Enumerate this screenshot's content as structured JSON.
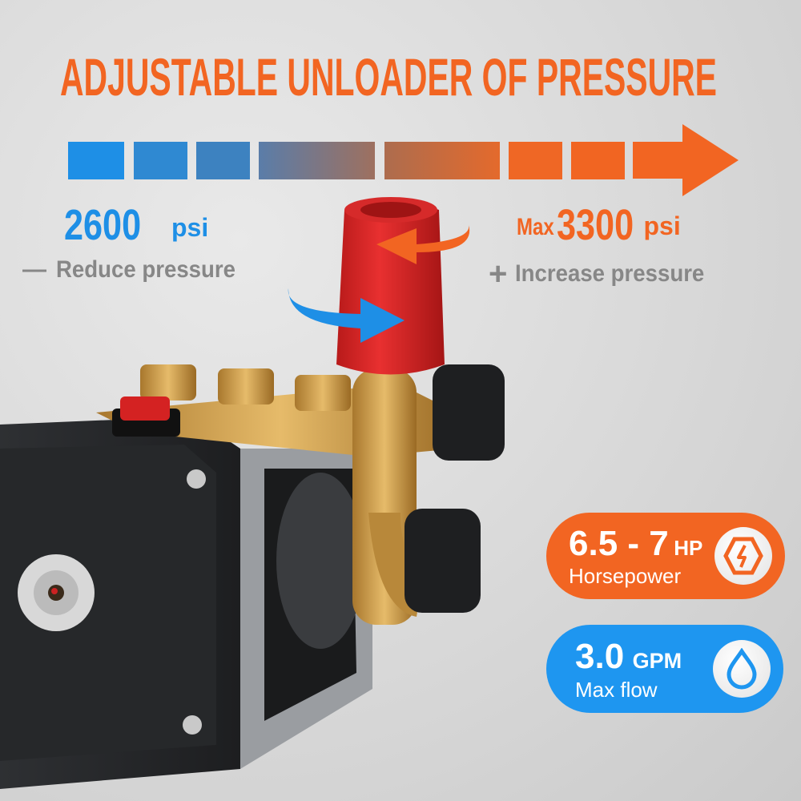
{
  "title": "ADJUSTABLE UNLOADER OF PRESSURE",
  "pressure_scale": {
    "min": {
      "value": "2600",
      "unit": "psi",
      "hint_symbol": "—",
      "hint": "Reduce pressure"
    },
    "max": {
      "prefix": "Max",
      "value": "3300",
      "unit": "psi",
      "hint_symbol": "+",
      "hint": "Increase pressure"
    }
  },
  "specs": [
    {
      "value": "6.5 - 7",
      "unit": "HP",
      "label": "Horsepower",
      "icon": "lightning-hexagon-icon",
      "color": "#f26522"
    },
    {
      "value": "3.0",
      "unit": "GPM",
      "label": "Max flow",
      "icon": "water-drop-icon",
      "color": "#1e96f0"
    }
  ],
  "colors": {
    "orange": "#f26522",
    "blue": "#1e8fe6",
    "gray": "#878787"
  }
}
